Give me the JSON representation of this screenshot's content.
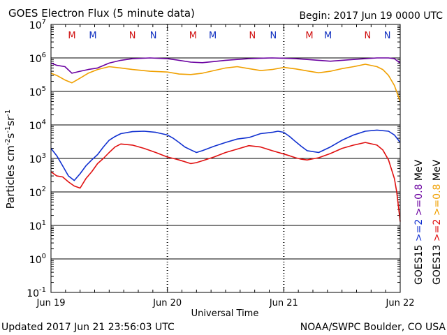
{
  "header": {
    "title": "GOES Electron Flux (5 minute data)",
    "begin": "Begin: 2017 Jun 19 0000 UTC"
  },
  "footer": {
    "updated": "Updated 2017 Jun 21 23:56:03 UTC",
    "credit": "NOAA/SWPC Boulder, CO USA"
  },
  "colors": {
    "red": "#e01010",
    "blue": "#1030d0",
    "purple": "#6a00a0",
    "orange": "#f0a000",
    "marker_red": "#d01010",
    "marker_blue": "#1030c0"
  },
  "chart_data": {
    "type": "line",
    "yscale": "log",
    "ylim": [
      0.1,
      10000000
    ],
    "xlim": [
      0,
      3
    ],
    "ylabel_parts": [
      "Particles cm",
      "-2",
      "s",
      "-1",
      "sr",
      "-1"
    ],
    "xlabel": "Universal Time",
    "xtick_labels": [
      "Jun 19",
      "Jun 20",
      "Jun 21",
      "Jun 22"
    ],
    "ytick_labels": [
      {
        "base": "10",
        "exp": "-1"
      },
      {
        "base": "10",
        "exp": "0"
      },
      {
        "base": "10",
        "exp": "1"
      },
      {
        "base": "10",
        "exp": "2"
      },
      {
        "base": "10",
        "exp": "3"
      },
      {
        "base": "10",
        "exp": "4"
      },
      {
        "base": "10",
        "exp": "5"
      },
      {
        "base": "10",
        "exp": "6"
      },
      {
        "base": "10",
        "exp": "7"
      }
    ],
    "threshold": 1000,
    "markers": [
      {
        "label": "M",
        "x": 0.18,
        "color": "red"
      },
      {
        "label": "M",
        "x": 0.36,
        "color": "blue"
      },
      {
        "label": "N",
        "x": 0.7,
        "color": "red"
      },
      {
        "label": "N",
        "x": 0.88,
        "color": "blue"
      },
      {
        "label": "M",
        "x": 1.22,
        "color": "red"
      },
      {
        "label": "M",
        "x": 1.39,
        "color": "blue"
      },
      {
        "label": "N",
        "x": 1.73,
        "color": "red"
      },
      {
        "label": "N",
        "x": 1.91,
        "color": "blue"
      },
      {
        "label": "M",
        "x": 2.22,
        "color": "red"
      },
      {
        "label": "M",
        "x": 2.38,
        "color": "blue"
      },
      {
        "label": "N",
        "x": 2.72,
        "color": "red"
      },
      {
        "label": "N",
        "x": 2.89,
        "color": "blue"
      }
    ],
    "legend": {
      "groups": [
        {
          "satellite": "GOES15",
          "entries": [
            {
              "label": ">=2",
              "color": "blue"
            },
            {
              "label": ">=0.8",
              "color": "purple"
            },
            {
              "label": "MeV",
              "color": "black"
            }
          ]
        },
        {
          "satellite": "GOES13",
          "entries": [
            {
              "label": ">=2",
              "color": "red"
            },
            {
              "label": ">=0.8",
              "color": "orange"
            },
            {
              "label": "MeV",
              "color": "black"
            }
          ]
        }
      ]
    },
    "series": [
      {
        "color": "purple",
        "x": [
          0,
          0.05,
          0.12,
          0.18,
          0.25,
          0.32,
          0.4,
          0.5,
          0.6,
          0.7,
          0.85,
          1.0,
          1.1,
          1.2,
          1.3,
          1.4,
          1.5,
          1.6,
          1.7,
          1.8,
          1.9,
          2.0,
          2.1,
          2.2,
          2.3,
          2.4,
          2.5,
          2.6,
          2.7,
          2.8,
          2.9,
          2.95,
          3.0
        ],
        "y": [
          700000,
          600000,
          550000,
          350000,
          400000,
          450000,
          500000,
          700000,
          850000,
          950000,
          1000000,
          950000,
          850000,
          750000,
          720000,
          780000,
          850000,
          900000,
          950000,
          980000,
          1000000,
          980000,
          950000,
          900000,
          850000,
          800000,
          850000,
          900000,
          950000,
          1000000,
          1000000,
          950000,
          700000
        ]
      },
      {
        "color": "orange",
        "x": [
          0,
          0.05,
          0.12,
          0.18,
          0.25,
          0.32,
          0.4,
          0.5,
          0.6,
          0.7,
          0.85,
          1.0,
          1.1,
          1.2,
          1.3,
          1.4,
          1.5,
          1.6,
          1.7,
          1.8,
          1.9,
          2.0,
          2.1,
          2.2,
          2.3,
          2.4,
          2.5,
          2.6,
          2.7,
          2.8,
          2.85,
          2.9,
          2.95,
          3.0
        ],
        "y": [
          350000,
          300000,
          220000,
          180000,
          250000,
          350000,
          450000,
          550000,
          500000,
          450000,
          400000,
          380000,
          330000,
          320000,
          350000,
          420000,
          500000,
          550000,
          480000,
          420000,
          450000,
          520000,
          470000,
          410000,
          360000,
          400000,
          480000,
          550000,
          650000,
          550000,
          450000,
          300000,
          150000,
          50000
        ]
      },
      {
        "color": "blue",
        "x": [
          0,
          0.05,
          0.1,
          0.15,
          0.2,
          0.25,
          0.3,
          0.35,
          0.4,
          0.45,
          0.5,
          0.55,
          0.6,
          0.7,
          0.8,
          0.9,
          1.0,
          1.05,
          1.1,
          1.15,
          1.2,
          1.25,
          1.3,
          1.4,
          1.5,
          1.6,
          1.7,
          1.8,
          1.9,
          1.95,
          2.0,
          2.05,
          2.1,
          2.15,
          2.2,
          2.3,
          2.4,
          2.5,
          2.6,
          2.7,
          2.8,
          2.9,
          2.95,
          3.0
        ],
        "y": [
          2000,
          1200,
          600,
          300,
          220,
          350,
          600,
          900,
          1300,
          2200,
          3500,
          4500,
          5500,
          6300,
          6500,
          6000,
          5000,
          4000,
          3000,
          2200,
          1800,
          1500,
          1700,
          2300,
          3000,
          3800,
          4200,
          5500,
          6000,
          6500,
          6000,
          4500,
          3200,
          2300,
          1700,
          1500,
          2200,
          3500,
          5000,
          6500,
          7000,
          6500,
          5000,
          3000
        ]
      },
      {
        "color": "red",
        "x": [
          0,
          0.05,
          0.1,
          0.15,
          0.2,
          0.25,
          0.3,
          0.35,
          0.4,
          0.45,
          0.5,
          0.55,
          0.6,
          0.7,
          0.8,
          0.9,
          1.0,
          1.05,
          1.1,
          1.15,
          1.2,
          1.25,
          1.3,
          1.4,
          1.5,
          1.6,
          1.7,
          1.8,
          1.9,
          2.0,
          2.05,
          2.1,
          2.15,
          2.2,
          2.3,
          2.4,
          2.5,
          2.6,
          2.7,
          2.8,
          2.85,
          2.9,
          2.95,
          2.97,
          3.0
        ],
        "y": [
          400,
          300,
          280,
          200,
          150,
          130,
          250,
          400,
          700,
          1000,
          1500,
          2200,
          2700,
          2500,
          2000,
          1500,
          1100,
          1000,
          900,
          800,
          700,
          750,
          850,
          1100,
          1500,
          1900,
          2400,
          2200,
          1700,
          1350,
          1200,
          1050,
          950,
          900,
          1050,
          1400,
          2000,
          2500,
          3000,
          2500,
          1800,
          900,
          250,
          100,
          13
        ]
      }
    ]
  }
}
